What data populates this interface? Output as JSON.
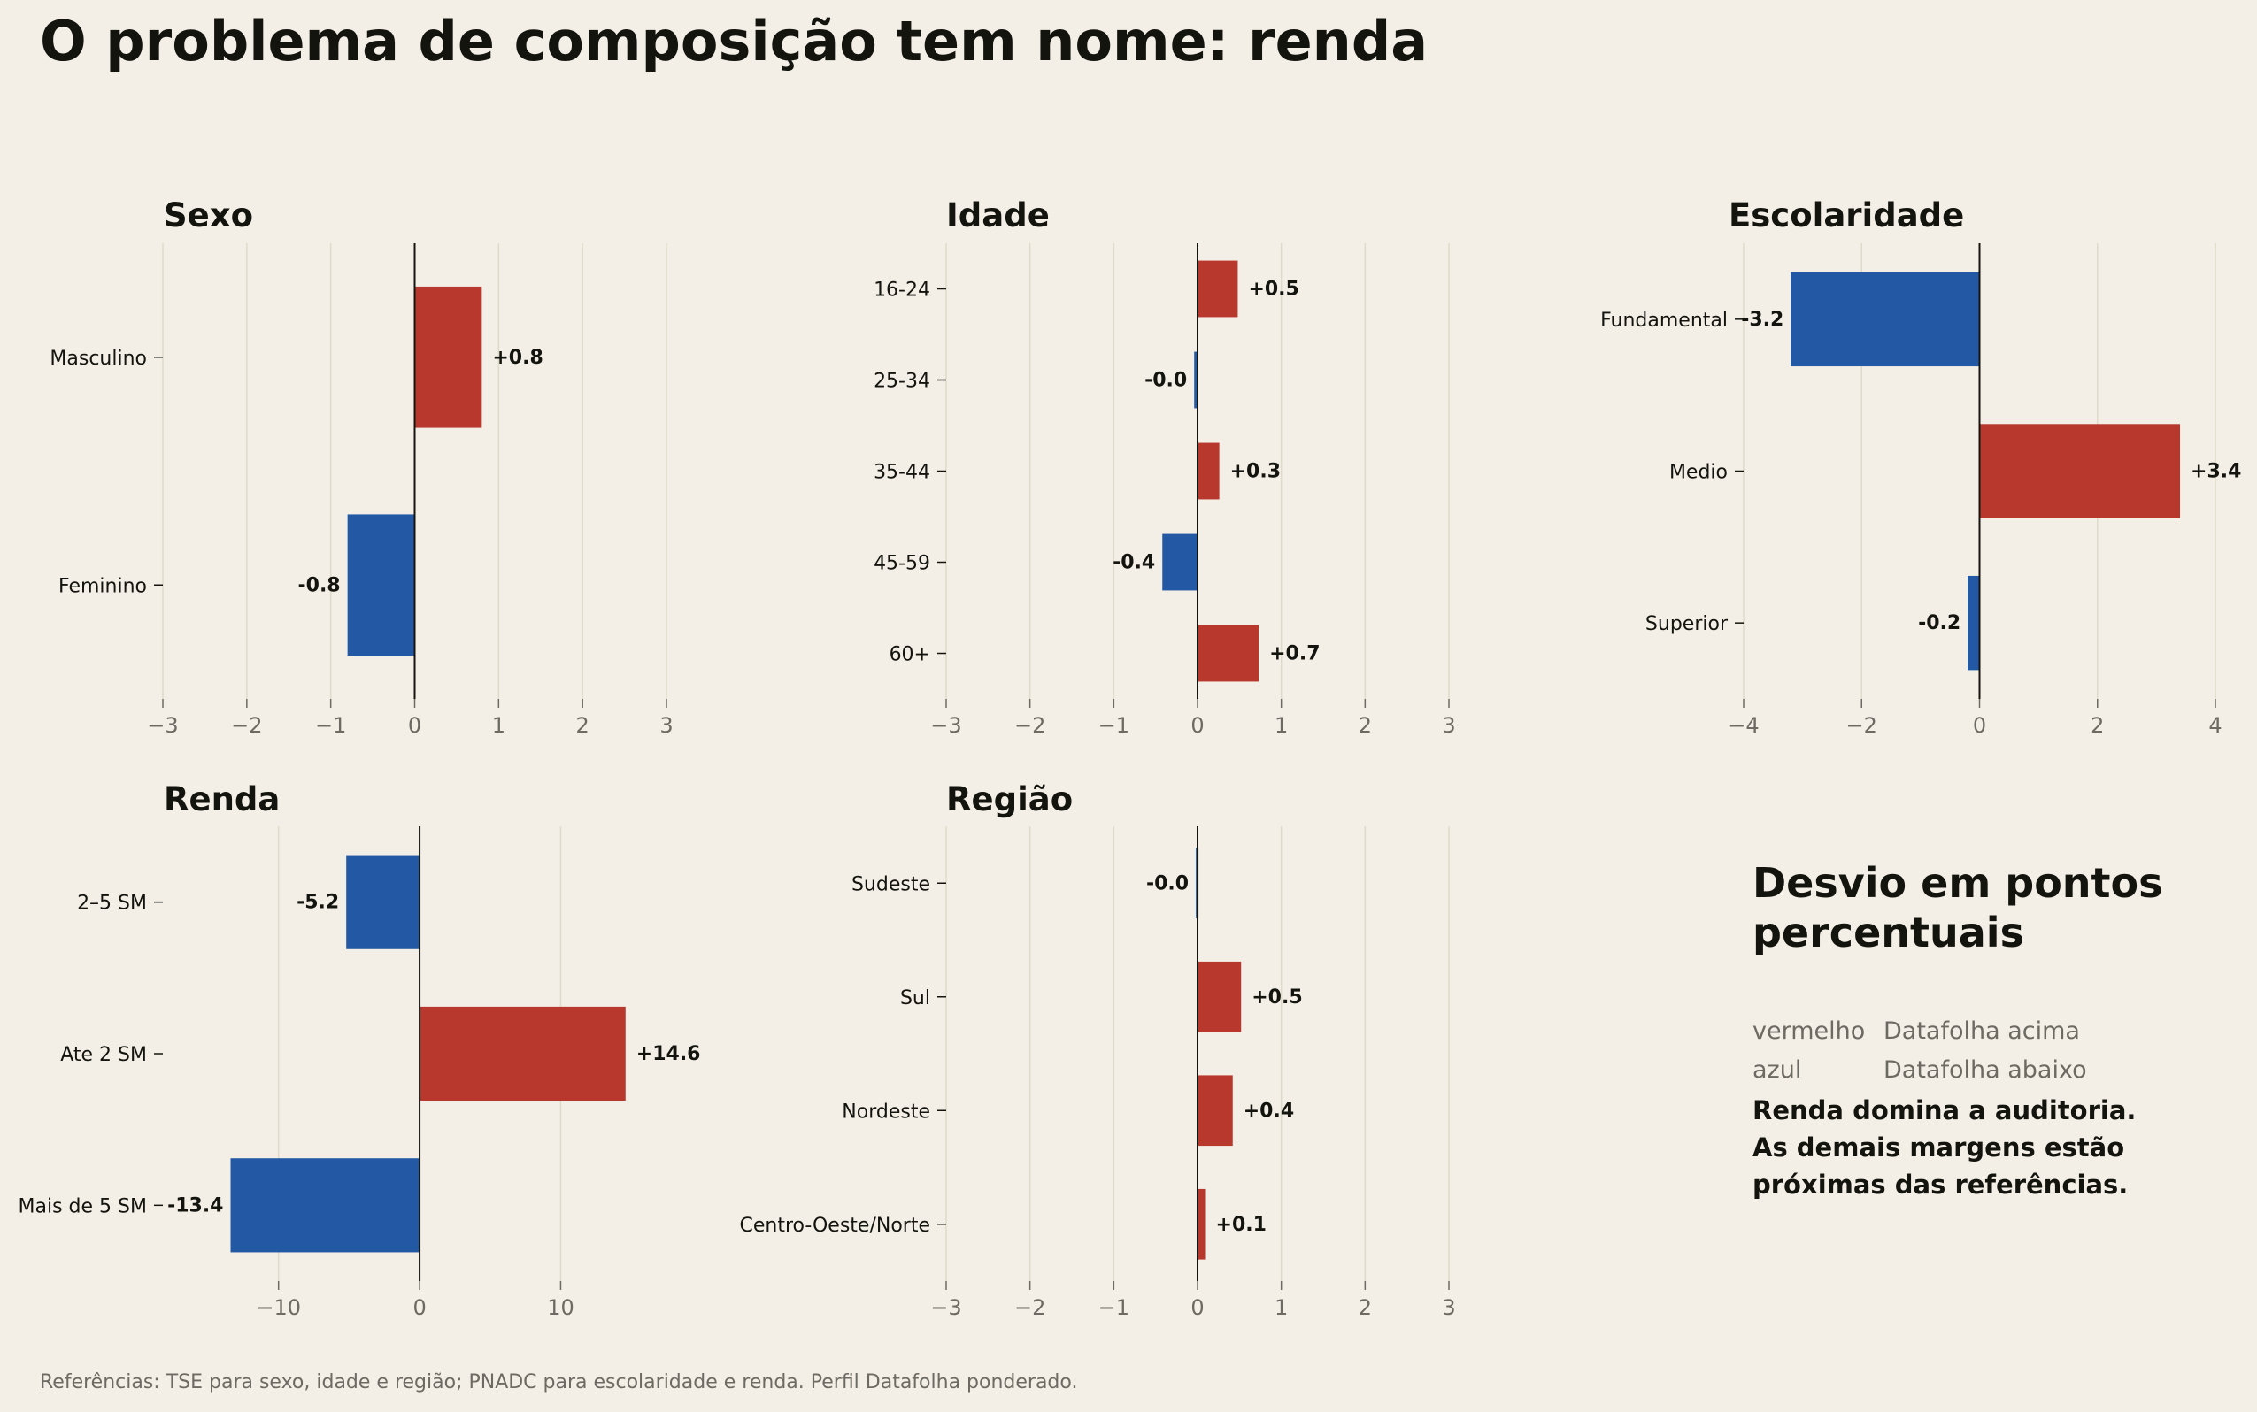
{
  "title": "O problema de composição tem nome: renda",
  "legend": {
    "title": "Desvio em pontos percentuais",
    "rows": [
      {
        "key": "vermelho",
        "text": "Datafolha acima"
      },
      {
        "key": "azul",
        "text": "Datafolha abaixo"
      }
    ],
    "note_lines": [
      "Renda domina a auditoria.",
      "As demais margens estão",
      "próximas das referências."
    ]
  },
  "source": "Referências: TSE para sexo, idade e região; PNADC para escolaridade e renda. Perfil Datafolha ponderado.",
  "colors": {
    "positive": "#b9382d",
    "negative": "#2359a4",
    "grid": "#dedbc9",
    "background": "#f3efe6"
  },
  "chart_data": [
    {
      "type": "bar",
      "orientation": "horizontal",
      "title": "Sexo",
      "categories": [
        "Masculino",
        "Feminino"
      ],
      "values": [
        0.8,
        -0.8
      ],
      "labels": [
        "+0.8",
        "-0.8"
      ],
      "xlim": [
        -3,
        3
      ],
      "xticks": [
        -3,
        -2,
        -1,
        0,
        1,
        2,
        3
      ],
      "grid": true
    },
    {
      "type": "bar",
      "orientation": "horizontal",
      "title": "Idade",
      "categories": [
        "16-24",
        "25-34",
        "35-44",
        "45-59",
        "60+"
      ],
      "values": [
        0.48,
        -0.04,
        0.26,
        -0.42,
        0.73
      ],
      "labels": [
        "+0.5",
        "-0.0",
        "+0.3",
        "-0.4",
        "+0.7"
      ],
      "xlim": [
        -3,
        3
      ],
      "xticks": [
        -3,
        -2,
        -1,
        0,
        1,
        2,
        3
      ],
      "grid": true
    },
    {
      "type": "bar",
      "orientation": "horizontal",
      "title": "Escolaridade",
      "categories": [
        "Fundamental",
        "Medio",
        "Superior"
      ],
      "values": [
        -3.2,
        3.4,
        -0.2
      ],
      "labels": [
        "-3.2",
        "+3.4",
        "-0.2"
      ],
      "xlim": [
        -4,
        4
      ],
      "xticks": [
        -4,
        -2,
        0,
        2,
        4
      ],
      "grid": true
    },
    {
      "type": "bar",
      "orientation": "horizontal",
      "title": "Renda",
      "categories": [
        "2–5 SM",
        "Ate 2 SM",
        "Mais de 5 SM"
      ],
      "values": [
        -5.2,
        14.6,
        -13.4
      ],
      "labels": [
        "-5.2",
        "+14.6",
        "-13.4"
      ],
      "xlim": [
        -18.2,
        17.5
      ],
      "xticks": [
        -10,
        0,
        10
      ],
      "grid": true
    },
    {
      "type": "bar",
      "orientation": "horizontal",
      "title": "Região",
      "categories": [
        "Sudeste",
        "Sul",
        "Nordeste",
        "Centro-Oeste/Norte"
      ],
      "values": [
        -0.02,
        0.52,
        0.42,
        0.09
      ],
      "labels": [
        "-0.0",
        "+0.5",
        "+0.4",
        "+0.1"
      ],
      "xlim": [
        -3,
        3
      ],
      "xticks": [
        -3,
        -2,
        -1,
        0,
        1,
        2,
        3
      ],
      "grid": true
    }
  ]
}
